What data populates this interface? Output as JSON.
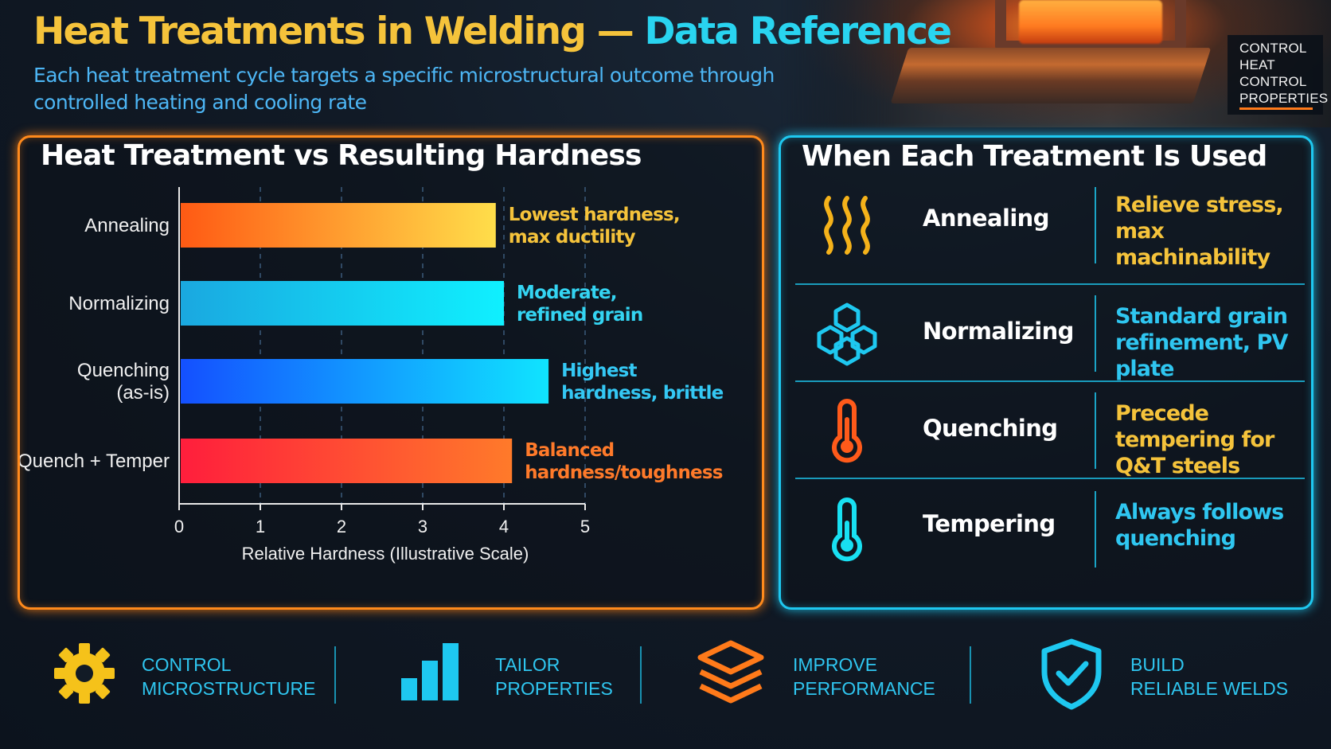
{
  "header": {
    "title_main": "Heat Treatments in Welding",
    "title_dash": " — ",
    "title_accent": "Data Reference",
    "subtitle": "Each heat treatment cycle targets a specific microstructural outcome through controlled heating and cooling rate"
  },
  "badge": {
    "lines": [
      "CONTROL",
      "HEAT",
      "CONTROL",
      "PROPERTIES"
    ]
  },
  "chart_panel": {
    "title": "Heat Treatment vs Resulting Hardness"
  },
  "chart_data": {
    "type": "bar",
    "orientation": "horizontal",
    "title": "Heat Treatment vs Resulting Hardness",
    "xlabel": "Relative Hardness (Illustrative Scale)",
    "ylabel": "",
    "xlim": [
      0,
      5
    ],
    "xticks": [
      "0",
      "1",
      "2",
      "3",
      "4",
      "5"
    ],
    "grid": "vertical dashed",
    "categories": [
      [
        "Annealing"
      ],
      [
        "Normalizing"
      ],
      [
        "Quenching",
        "(as-is)"
      ],
      [
        "Quench + Temper"
      ]
    ],
    "values": [
      3.9,
      4.0,
      4.55,
      4.1
    ],
    "annotations": [
      [
        "Lowest hardness,",
        "max ductility"
      ],
      [
        "Moderate,",
        "refined grain"
      ],
      [
        "Highest",
        "hardness, brittle"
      ],
      [
        "Balanced",
        "hardness/toughness"
      ]
    ],
    "colors": [
      [
        "#ff5a14",
        "#ffde4a"
      ],
      [
        "#1aa8e0",
        "#0ff0ff"
      ],
      [
        "#1450ff",
        "#10e4ff"
      ],
      [
        "#ff1e3c",
        "#ff7a2a"
      ]
    ],
    "annotation_colors": [
      "#f5c33b",
      "#34d4f2",
      "#34c8f4",
      "#ff7a2a"
    ]
  },
  "usage_panel": {
    "title": "When Each Treatment Is Used",
    "rows": [
      {
        "name": "Annealing",
        "desc": "Relieve stress, max machinability",
        "icon": "heat-waves-icon",
        "desc_color": "#f5c33b"
      },
      {
        "name": "Normalizing",
        "desc": "Standard grain refinement, PV plate",
        "icon": "grain-structure-icon",
        "desc_color": "#2fc6f0"
      },
      {
        "name": "Quenching",
        "desc": "Precede tempering for Q&T steels",
        "icon": "hot-thermometer-icon",
        "desc_color": "#f5c33b"
      },
      {
        "name": "Tempering",
        "desc": "Always follows quenching",
        "icon": "thermometer-icon",
        "desc_color": "#2fc6f0"
      }
    ]
  },
  "footer": {
    "items": [
      {
        "line1": "CONTROL",
        "line2": "MICROSTRUCTURE",
        "icon": "gear-icon"
      },
      {
        "line1": "TAILOR",
        "line2": "PROPERTIES",
        "icon": "bar-chart-icon"
      },
      {
        "line1": "IMPROVE",
        "line2": "PERFORMANCE",
        "icon": "layers-icon"
      },
      {
        "line1": "BUILD",
        "line2": "RELIABLE WELDS",
        "icon": "shield-check-icon"
      }
    ]
  }
}
